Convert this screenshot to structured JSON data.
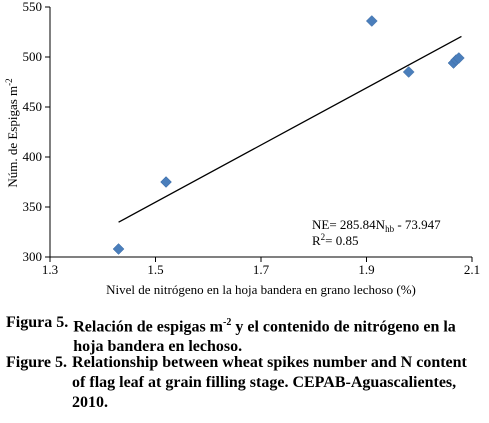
{
  "chart_data": {
    "type": "scatter",
    "xlabel": "Nivel de nitrógeno en la hoja bandera en grano lechoso (%)",
    "ylabel": "Núm. de Espigas m",
    "ylabel_sup": "-2",
    "xlim": [
      1.3,
      2.1
    ],
    "ylim": [
      300,
      550
    ],
    "x_ticks": [
      "1.3",
      "1.5",
      "1.7",
      "1.9",
      "2.1"
    ],
    "y_ticks": [
      "300",
      "350",
      "400",
      "450",
      "500",
      "550"
    ],
    "points": [
      {
        "x": 1.43,
        "y": 308
      },
      {
        "x": 1.52,
        "y": 375
      },
      {
        "x": 1.91,
        "y": 536
      },
      {
        "x": 1.98,
        "y": 485
      },
      {
        "x": 2.065,
        "y": 494
      },
      {
        "x": 2.07,
        "y": 497
      },
      {
        "x": 2.075,
        "y": 499
      }
    ],
    "trendline": {
      "x": [
        1.43,
        2.08
      ],
      "equation": "NE= 285.84Nhb - 73.947",
      "r2": "R2= 0.85"
    },
    "marker_color": "#4a7ebb",
    "grid": false
  },
  "equation": {
    "prefix": "NE= 285.84N",
    "sub": "hb",
    "suffix": " - 73.947",
    "r2_prefix": "R",
    "r2_sup": "2",
    "r2_suffix": "= 0.85"
  },
  "caption_es": {
    "label": "Figura 5.",
    "text_1": "Relación de espigas m",
    "sup": "-2",
    "text_2": " y el contenido de nitrógeno en la hoja bandera en lechoso."
  },
  "caption_en": {
    "label": "Figure 5.",
    "text": "Relationship between wheat spikes number and N content of flag leaf at grain filling stage. CEPAB-Aguascalientes, 2010."
  }
}
